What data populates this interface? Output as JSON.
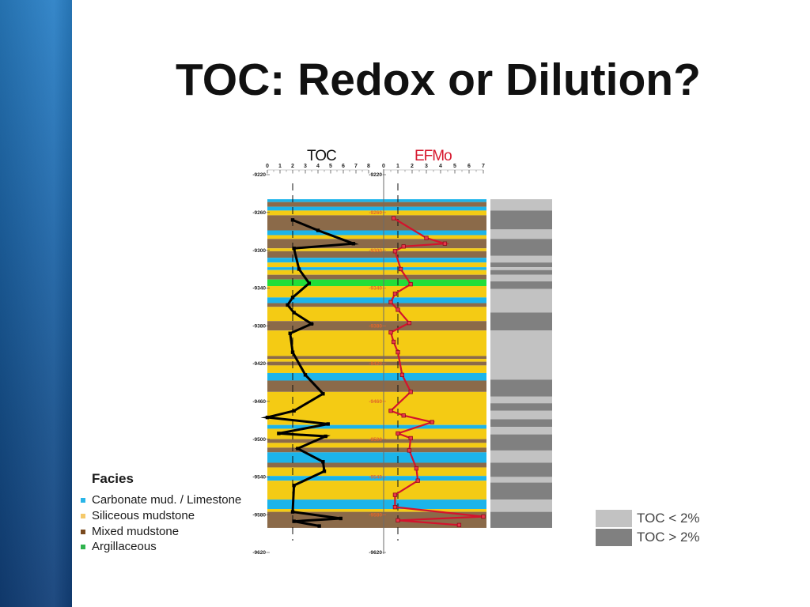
{
  "slide": {
    "title": "TOC: Redox or Dilution?"
  },
  "theme": {
    "background": "#ffffff",
    "accent_bar_top": "#2a80c6",
    "accent_bar_bottom": "#123f78"
  },
  "chart_data": {
    "type": "line",
    "grid": false,
    "depth_axis": {
      "range": [
        -9220,
        -9620
      ],
      "ticks": [
        -9220,
        -9260,
        -9300,
        -9340,
        -9380,
        -9420,
        -9460,
        -9500,
        -9540,
        -9580,
        -9620
      ]
    },
    "tracks": [
      {
        "name": "TOC",
        "header_color": "#111111",
        "xlim": [
          0,
          8
        ],
        "ticks": [
          0,
          1,
          2,
          3,
          4,
          5,
          6,
          7,
          8
        ],
        "cutoff": 2,
        "color": "#000000",
        "marker_color": "#000000",
        "marker_stroke": "#000000",
        "points": [
          [
            -9268,
            2.0
          ],
          [
            -9279,
            4.0
          ],
          [
            -9293,
            6.8
          ],
          [
            -9298,
            2.1
          ],
          [
            -9320,
            2.5
          ],
          [
            -9335,
            3.3
          ],
          [
            -9350,
            2.0
          ],
          [
            -9358,
            1.6
          ],
          [
            -9366,
            2.1
          ],
          [
            -9378,
            3.5
          ],
          [
            -9388,
            1.8
          ],
          [
            -9408,
            2.0
          ],
          [
            -9432,
            3.0
          ],
          [
            -9452,
            4.4
          ],
          [
            -9470,
            2.1
          ],
          [
            -9477,
            0.0
          ],
          [
            -9484,
            4.8
          ],
          [
            -9494,
            0.9
          ],
          [
            -9497,
            4.6
          ],
          [
            -9510,
            2.4
          ],
          [
            -9524,
            4.4
          ],
          [
            -9534,
            4.5
          ],
          [
            -9549,
            2.1
          ],
          [
            -9577,
            2.0
          ],
          [
            -9584,
            5.8
          ],
          [
            -9587,
            2.1
          ],
          [
            -9592,
            4.1
          ]
        ]
      },
      {
        "name": "EFMo",
        "header_color": "#d6192f",
        "xlim": [
          0,
          7
        ],
        "ticks": [
          0,
          1,
          2,
          3,
          4,
          5,
          6,
          7
        ],
        "cutoff": 1,
        "color": "#d3132d",
        "marker_color": "#e8374a",
        "marker_stroke": "#8e0a1a",
        "points": [
          [
            -9266,
            0.7
          ],
          [
            -9287,
            3.0
          ],
          [
            -9293,
            4.3
          ],
          [
            -9296,
            1.4
          ],
          [
            -9301,
            0.8
          ],
          [
            -9320,
            1.2
          ],
          [
            -9336,
            1.9
          ],
          [
            -9346,
            0.8
          ],
          [
            -9355,
            0.5
          ],
          [
            -9363,
            1.0
          ],
          [
            -9377,
            1.8
          ],
          [
            -9387,
            0.5
          ],
          [
            -9397,
            0.7
          ],
          [
            -9408,
            1.0
          ],
          [
            -9432,
            1.3
          ],
          [
            -9450,
            1.9
          ],
          [
            -9470,
            0.5
          ],
          [
            -9475,
            1.4
          ],
          [
            -9482,
            3.4
          ],
          [
            -9494,
            1.0
          ],
          [
            -9499,
            1.9
          ],
          [
            -9512,
            1.8
          ],
          [
            -9531,
            2.3
          ],
          [
            -9544,
            2.4
          ],
          [
            -9559,
            0.8
          ],
          [
            -9572,
            0.8
          ],
          [
            -9582,
            7.0
          ],
          [
            -9586,
            1.0
          ],
          [
            -9591,
            5.3
          ]
        ]
      }
    ],
    "facies_intervals": [
      [
        -9246,
        -9249,
        0
      ],
      [
        -9249,
        -9254,
        2
      ],
      [
        -9254,
        -9258,
        0
      ],
      [
        -9258,
        -9263,
        1
      ],
      [
        -9263,
        -9279,
        2
      ],
      [
        -9279,
        -9284,
        0
      ],
      [
        -9284,
        -9288,
        1
      ],
      [
        -9288,
        -9298,
        2
      ],
      [
        -9298,
        -9301,
        1
      ],
      [
        -9301,
        -9308,
        2
      ],
      [
        -9308,
        -9313,
        0
      ],
      [
        -9313,
        -9318,
        1
      ],
      [
        -9318,
        -9321,
        0
      ],
      [
        -9321,
        -9326,
        1
      ],
      [
        -9326,
        -9331,
        2
      ],
      [
        -9331,
        -9338,
        3
      ],
      [
        -9338,
        -9350,
        1
      ],
      [
        -9350,
        -9356,
        0
      ],
      [
        -9356,
        -9360,
        2
      ],
      [
        -9360,
        -9375,
        1
      ],
      [
        -9375,
        -9385,
        2
      ],
      [
        -9385,
        -9412,
        1
      ],
      [
        -9412,
        -9415,
        2
      ],
      [
        -9415,
        -9418,
        1
      ],
      [
        -9418,
        -9422,
        2
      ],
      [
        -9422,
        -9430,
        1
      ],
      [
        -9430,
        -9438,
        0
      ],
      [
        -9438,
        -9450,
        2
      ],
      [
        -9450,
        -9485,
        1
      ],
      [
        -9485,
        -9489,
        0
      ],
      [
        -9489,
        -9500,
        1
      ],
      [
        -9500,
        -9504,
        2
      ],
      [
        -9504,
        -9509,
        1
      ],
      [
        -9509,
        -9514,
        2
      ],
      [
        -9514,
        -9525,
        0
      ],
      [
        -9525,
        -9530,
        2
      ],
      [
        -9530,
        -9539,
        1
      ],
      [
        -9539,
        -9544,
        0
      ],
      [
        -9544,
        -9564,
        1
      ],
      [
        -9564,
        -9574,
        0
      ],
      [
        -9574,
        -9577,
        1
      ],
      [
        -9577,
        -9594,
        2
      ]
    ],
    "toc_class_intervals": [
      [
        -9246,
        -9258,
        0
      ],
      [
        -9258,
        -9278,
        1
      ],
      [
        -9278,
        -9288,
        0
      ],
      [
        -9288,
        -9306,
        1
      ],
      [
        -9306,
        -9313,
        0
      ],
      [
        -9313,
        -9318,
        1
      ],
      [
        -9318,
        -9321,
        0
      ],
      [
        -9321,
        -9326,
        1
      ],
      [
        -9326,
        -9333,
        0
      ],
      [
        -9333,
        -9341,
        1
      ],
      [
        -9341,
        -9366,
        0
      ],
      [
        -9366,
        -9385,
        1
      ],
      [
        -9385,
        -9437,
        0
      ],
      [
        -9437,
        -9455,
        1
      ],
      [
        -9455,
        -9462,
        0
      ],
      [
        -9462,
        -9470,
        1
      ],
      [
        -9470,
        -9479,
        0
      ],
      [
        -9479,
        -9487,
        1
      ],
      [
        -9487,
        -9495,
        0
      ],
      [
        -9495,
        -9512,
        1
      ],
      [
        -9512,
        -9525,
        0
      ],
      [
        -9525,
        -9540,
        1
      ],
      [
        -9540,
        -9546,
        0
      ],
      [
        -9546,
        -9564,
        1
      ],
      [
        -9564,
        -9577,
        0
      ],
      [
        -9577,
        -9594,
        1
      ]
    ]
  },
  "facies_legend": {
    "title": "Facies",
    "items": [
      {
        "label": "Carbonate mud. / Limestone",
        "legend_color": "#29b5e8",
        "chart_color": "#1cb4ea"
      },
      {
        "label": "Siliceous mudstone",
        "legend_color": "#f5c96a",
        "chart_color": "#f4cb14"
      },
      {
        "label": "Mixed mudstone",
        "legend_color": "#7a4a1f",
        "chart_color": "#8b6a49"
      },
      {
        "label": "Argillaceous",
        "legend_color": "#2fb34d",
        "chart_color": "#22de38"
      }
    ]
  },
  "toc_legend": {
    "items": [
      {
        "label": "TOC < 2%",
        "color": "#c2c2c2"
      },
      {
        "label": "TOC > 2%",
        "color": "#808080"
      }
    ]
  }
}
